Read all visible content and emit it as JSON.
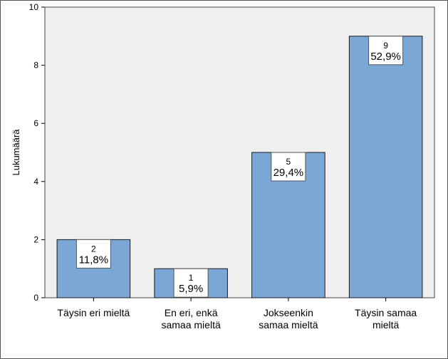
{
  "chart_data": {
    "type": "bar",
    "categories": [
      [
        "Täysin eri mieltä"
      ],
      [
        "En eri, enkä",
        "samaa mieltä"
      ],
      [
        "Jokseenkin",
        "samaa mieltä"
      ],
      [
        "Täysin samaa",
        "mieltä"
      ]
    ],
    "values": [
      2,
      1,
      5,
      9
    ],
    "percent_labels": [
      "11,8%",
      "5,9%",
      "29,4%",
      "52,9%"
    ],
    "count_labels": [
      "2",
      "1",
      "5",
      "9"
    ],
    "ylabel": "Lukumäärä",
    "xlabel": "",
    "title": "",
    "ylim": [
      0,
      10
    ],
    "yticks": [
      0,
      2,
      4,
      6,
      8,
      10
    ],
    "grid": false,
    "legend": "none",
    "colors": {
      "bar_fill": "#7aa7d6",
      "bar_stroke": "#1a1a1a",
      "plot_bg": "#efefef",
      "label_box": "#ffffff"
    }
  }
}
